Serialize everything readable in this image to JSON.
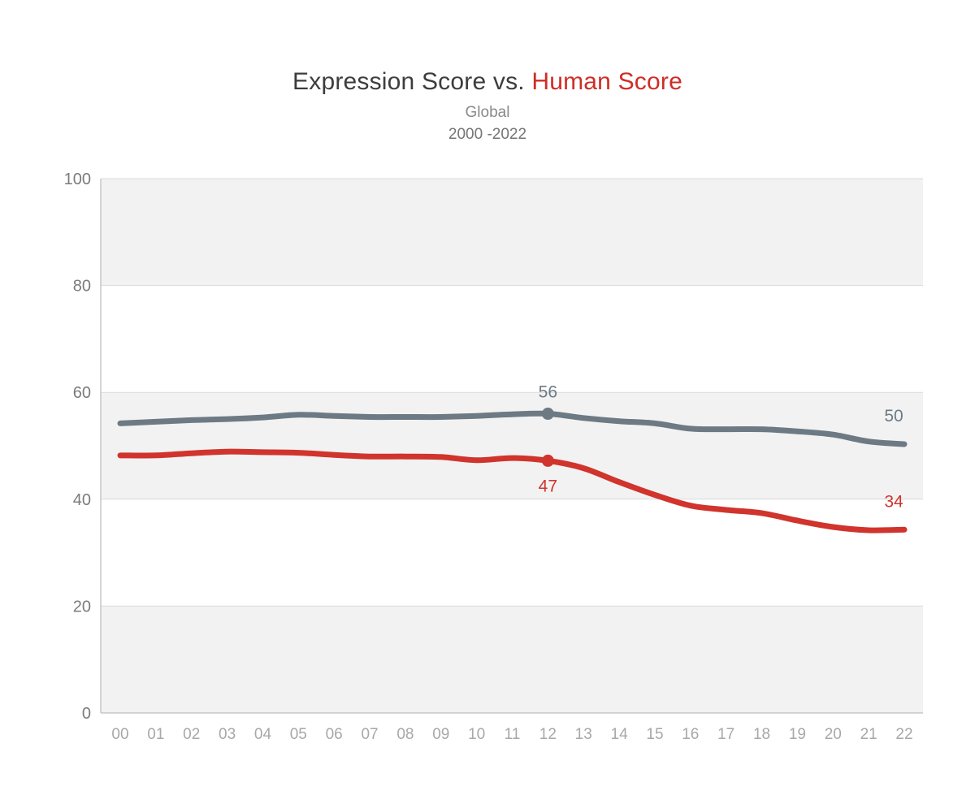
{
  "title": {
    "part1": "Expression Score vs. ",
    "part2": "Human Score"
  },
  "subtitle": "Global",
  "period": "2000 -2022",
  "chart_data": {
    "type": "line",
    "categories": [
      "00",
      "01",
      "02",
      "03",
      "04",
      "05",
      "06",
      "07",
      "08",
      "09",
      "10",
      "11",
      "12",
      "13",
      "14",
      "15",
      "16",
      "17",
      "18",
      "19",
      "20",
      "21",
      "22"
    ],
    "series": [
      {
        "name": "Expression Score",
        "color": "#6d7a84",
        "values": [
          54.2,
          54.5,
          54.8,
          55.0,
          55.3,
          55.8,
          55.6,
          55.4,
          55.4,
          55.4,
          55.6,
          55.9,
          56.0,
          55.2,
          54.6,
          54.2,
          53.2,
          53.1,
          53.1,
          52.7,
          52.1,
          50.8,
          50.3
        ]
      },
      {
        "name": "Human Score",
        "color": "#d0342c",
        "values": [
          48.2,
          48.2,
          48.6,
          48.9,
          48.8,
          48.7,
          48.3,
          48.0,
          48.0,
          47.9,
          47.3,
          47.7,
          47.2,
          45.8,
          43.2,
          40.8,
          38.8,
          38.0,
          37.4,
          36.0,
          34.8,
          34.2,
          34.3
        ]
      }
    ],
    "annotations": [
      {
        "series": 0,
        "index": 12,
        "text": "56",
        "placement": "above",
        "dot": true
      },
      {
        "series": 1,
        "index": 12,
        "text": "47",
        "placement": "below",
        "dot": true
      },
      {
        "series": 0,
        "index": 22,
        "text": "50",
        "placement": "end",
        "dot": false
      },
      {
        "series": 1,
        "index": 22,
        "text": "34",
        "placement": "end",
        "dot": false
      }
    ],
    "ylim": [
      0,
      100
    ],
    "yticks": [
      0,
      20,
      40,
      60,
      80,
      100
    ],
    "grid": true,
    "legend": "none",
    "band_color": "#f2f2f2",
    "grid_color": "#dadada",
    "axis_color": "#c8c8c8",
    "ytick_color": "#7b7b7b",
    "xtick_color": "#a8a8a8"
  }
}
